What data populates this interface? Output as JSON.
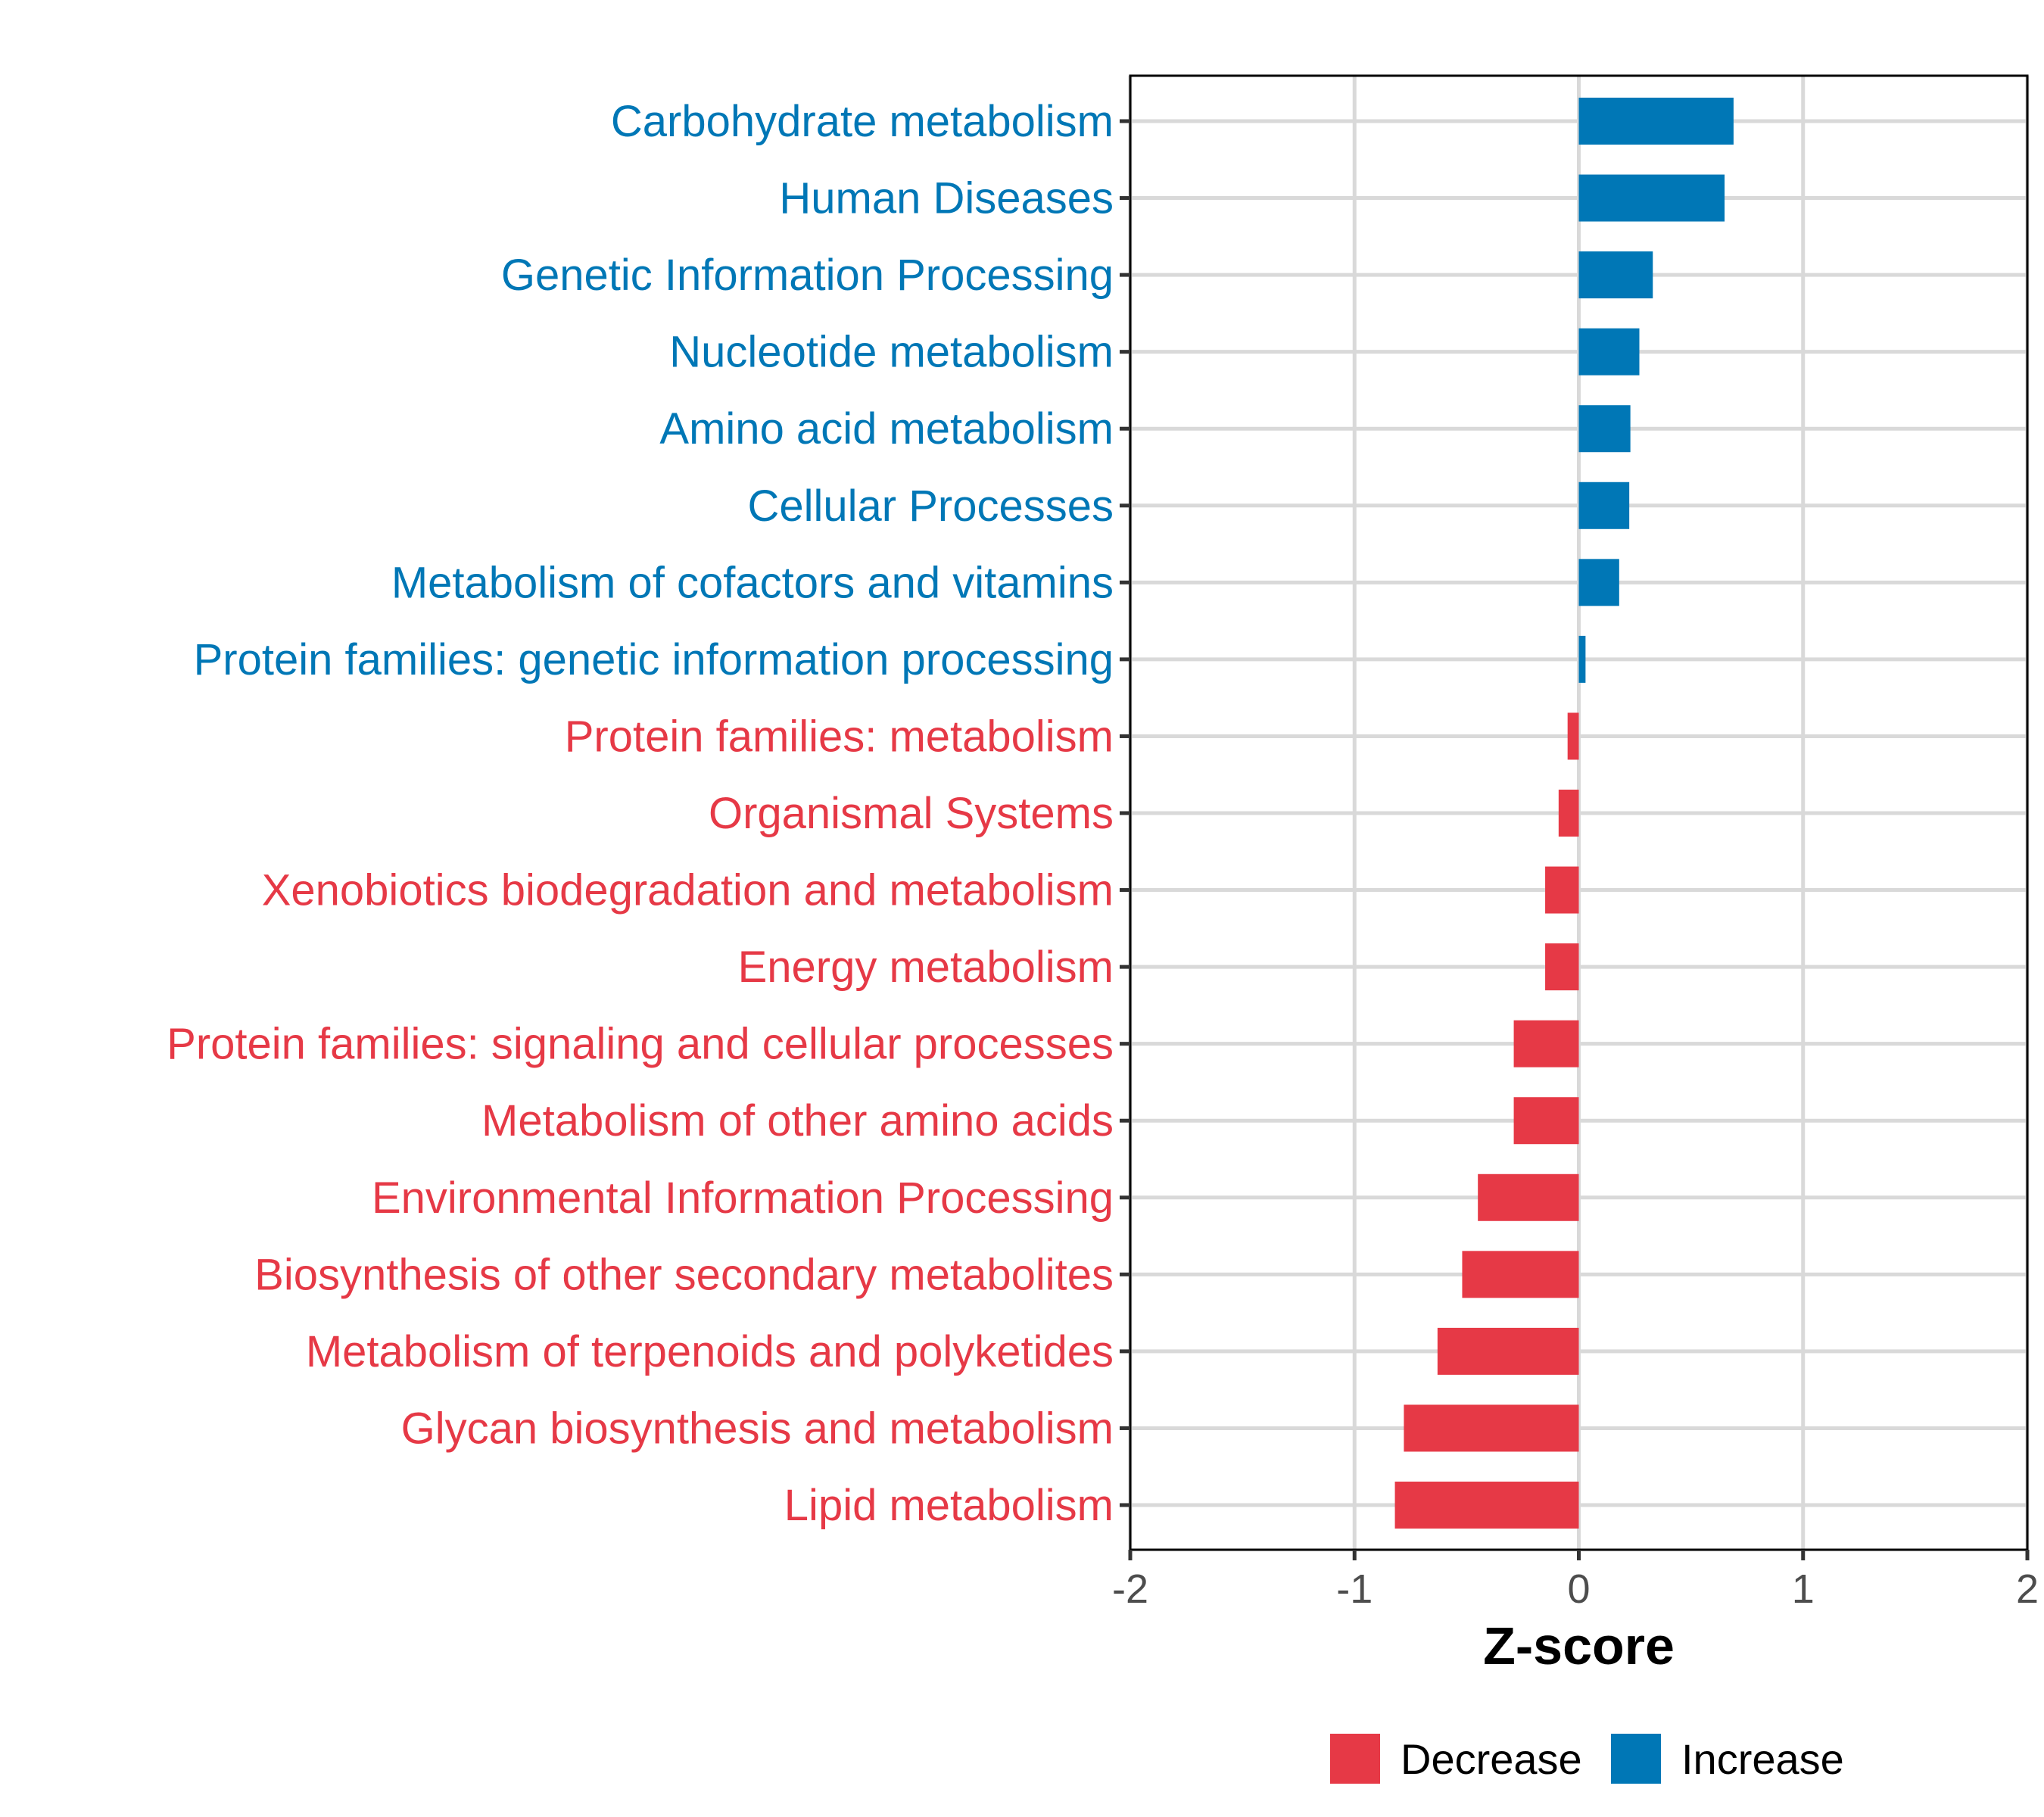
{
  "chart_data": {
    "type": "bar",
    "orientation": "horizontal",
    "title": "",
    "xlabel": "Z-score",
    "ylabel": "",
    "xlim": [
      -2,
      2
    ],
    "xticks": [
      -2,
      -1,
      0,
      1,
      2
    ],
    "xtick_labels": [
      "-2",
      "-1",
      "0",
      "1",
      "2"
    ],
    "grid": true,
    "legend_position": "bottom",
    "colors": {
      "Decrease": "#E63946",
      "Increase": "#0077B6"
    },
    "legend": [
      {
        "label": "Decrease",
        "color": "#E63946"
      },
      {
        "label": "Increase",
        "color": "#0077B6"
      }
    ],
    "categories": [
      "Carbohydrate metabolism",
      "Human Diseases",
      "Genetic Information Processing",
      "Nucleotide metabolism",
      "Amino acid metabolism",
      "Cellular Processes",
      "Metabolism of cofactors and vitamins",
      "Protein families: genetic information processing",
      "Protein families: metabolism",
      "Organismal Systems",
      "Xenobiotics biodegradation and metabolism",
      "Energy metabolism",
      "Protein families: signaling and cellular processes",
      "Metabolism of other amino acids",
      "Environmental Information Processing",
      "Biosynthesis of other secondary metabolites",
      "Metabolism of terpenoids and polyketides",
      "Glycan biosynthesis and metabolism",
      "Lipid metabolism"
    ],
    "values": [
      0.69,
      0.65,
      0.33,
      0.27,
      0.23,
      0.225,
      0.18,
      0.03,
      -0.05,
      -0.09,
      -0.15,
      -0.15,
      -0.29,
      -0.29,
      -0.45,
      -0.52,
      -0.63,
      -0.78,
      -0.82
    ],
    "groups": [
      "Increase",
      "Increase",
      "Increase",
      "Increase",
      "Increase",
      "Increase",
      "Increase",
      "Increase",
      "Decrease",
      "Decrease",
      "Decrease",
      "Decrease",
      "Decrease",
      "Decrease",
      "Decrease",
      "Decrease",
      "Decrease",
      "Decrease",
      "Decrease"
    ]
  }
}
